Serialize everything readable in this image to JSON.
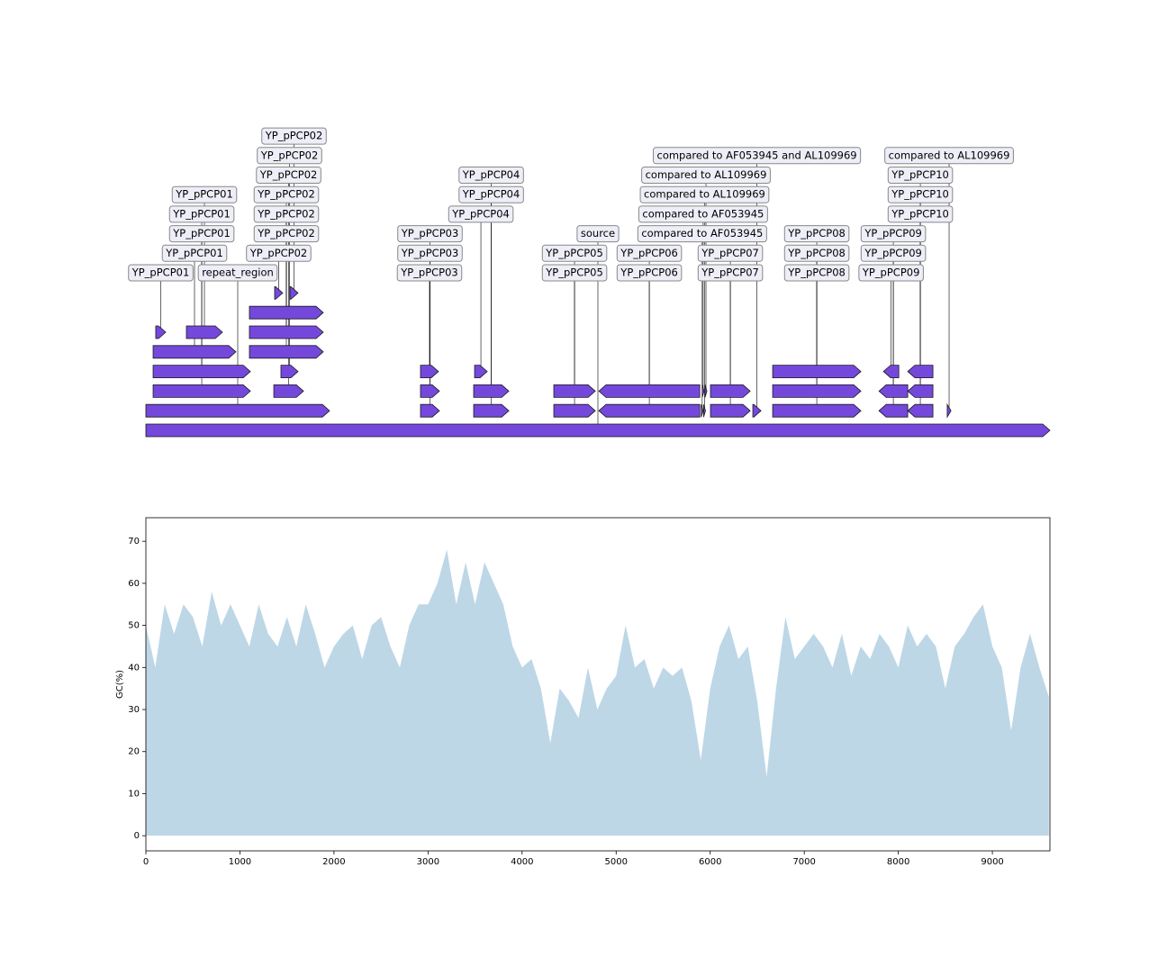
{
  "chart_data": [
    {
      "type": "features",
      "xlim": [
        0,
        9612
      ],
      "color": "#7548dc",
      "features": [
        {
          "start": 0,
          "end": 9612,
          "strand": 1,
          "label": "source"
        },
        {
          "start": 0,
          "end": 1953,
          "strand": 1,
          "label": "repeat_region"
        },
        {
          "start": 77,
          "end": 1111,
          "strand": 1,
          "label": "YP_pPCP01"
        },
        {
          "start": 77,
          "end": 1111,
          "strand": 1,
          "label": "YP_pPCP01"
        },
        {
          "start": 77,
          "end": 957,
          "strand": 1,
          "label": "YP_pPCP01"
        },
        {
          "start": 105,
          "end": 211,
          "strand": 1,
          "label": "YP_pPCP01"
        },
        {
          "start": 431,
          "end": 814,
          "strand": 1,
          "label": "YP_pPCP01"
        },
        {
          "start": 1360,
          "end": 1676,
          "strand": 1,
          "label": "YP_pPCP02"
        },
        {
          "start": 1436,
          "end": 1618,
          "strand": 1,
          "label": "YP_pPCP02"
        },
        {
          "start": 1101,
          "end": 1886,
          "strand": 1,
          "label": "YP_pPCP02"
        },
        {
          "start": 1101,
          "end": 1886,
          "strand": 1,
          "label": "YP_pPCP02"
        },
        {
          "start": 1101,
          "end": 1886,
          "strand": 1,
          "label": "YP_pPCP02"
        },
        {
          "start": 1369,
          "end": 1455,
          "strand": 1,
          "label": "YP_pPCP02"
        },
        {
          "start": 1532,
          "end": 1618,
          "strand": 1,
          "label": "YP_pPCP02"
        },
        {
          "start": 2920,
          "end": 3121,
          "strand": 1,
          "label": "YP_pPCP03"
        },
        {
          "start": 2920,
          "end": 3121,
          "strand": 1,
          "label": "YP_pPCP03"
        },
        {
          "start": 2920,
          "end": 3111,
          "strand": 1,
          "label": "YP_pPCP03"
        },
        {
          "start": 3485,
          "end": 3859,
          "strand": 1,
          "label": "YP_pPCP04"
        },
        {
          "start": 3485,
          "end": 3859,
          "strand": 1,
          "label": "YP_pPCP04"
        },
        {
          "start": 3495,
          "end": 3629,
          "strand": 1,
          "label": "YP_pPCP04"
        },
        {
          "start": 4337,
          "end": 4778,
          "strand": 1,
          "label": "YP_pPCP05"
        },
        {
          "start": 4337,
          "end": 4778,
          "strand": 1,
          "label": "YP_pPCP05"
        },
        {
          "start": 4816,
          "end": 5889,
          "strand": -1,
          "label": "YP_pPCP06"
        },
        {
          "start": 4816,
          "end": 5889,
          "strand": -1,
          "label": "YP_pPCP06"
        },
        {
          "start": 5905,
          "end": 5925,
          "strand": 1,
          "label": "compared to AF053945"
        },
        {
          "start": 5915,
          "end": 5935,
          "strand": 1,
          "label": "compared to AF053945"
        },
        {
          "start": 5930,
          "end": 5950,
          "strand": 1,
          "label": "compared to AL109969"
        },
        {
          "start": 5945,
          "end": 5965,
          "strand": 1,
          "label": "compared to AL109969"
        },
        {
          "start": 6453,
          "end": 6540,
          "strand": 1,
          "label": "compared to AF053945 and AL109969"
        },
        {
          "start": 6003,
          "end": 6425,
          "strand": 1,
          "label": "YP_pPCP07"
        },
        {
          "start": 6003,
          "end": 6425,
          "strand": 1,
          "label": "YP_pPCP07"
        },
        {
          "start": 6664,
          "end": 7602,
          "strand": 1,
          "label": "YP_pPCP08"
        },
        {
          "start": 6664,
          "end": 7602,
          "strand": 1,
          "label": "YP_pPCP08"
        },
        {
          "start": 6664,
          "end": 7602,
          "strand": 1,
          "label": "YP_pPCP08"
        },
        {
          "start": 7794,
          "end": 8100,
          "strand": -1,
          "label": "YP_pPCP09"
        },
        {
          "start": 7794,
          "end": 8100,
          "strand": -1,
          "label": "YP_pPCP09"
        },
        {
          "start": 7842,
          "end": 8005,
          "strand": -1,
          "label": "YP_pPCP09"
        },
        {
          "start": 8100,
          "end": 8368,
          "strand": -1,
          "label": "YP_pPCP10"
        },
        {
          "start": 8100,
          "end": 8368,
          "strand": -1,
          "label": "YP_pPCP10"
        },
        {
          "start": 8100,
          "end": 8368,
          "strand": -1,
          "label": "YP_pPCP10"
        },
        {
          "start": 8520,
          "end": 8560,
          "strand": 1,
          "label": "compared to AL109969"
        }
      ]
    },
    {
      "type": "area",
      "ylabel": "GC(%)",
      "color": "#bdd7e7",
      "xlim": [
        0,
        9612
      ],
      "ylim": [
        -3.6,
        75.6
      ],
      "xticks": [
        0,
        1000,
        2000,
        3000,
        4000,
        5000,
        6000,
        7000,
        8000,
        9000
      ],
      "yticks": [
        0,
        10,
        20,
        30,
        40,
        50,
        60,
        70
      ],
      "x": [
        0,
        100,
        200,
        300,
        400,
        500,
        600,
        700,
        800,
        900,
        1000,
        1100,
        1200,
        1300,
        1400,
        1500,
        1600,
        1700,
        1800,
        1900,
        2000,
        2100,
        2200,
        2300,
        2400,
        2500,
        2600,
        2700,
        2800,
        2900,
        3000,
        3100,
        3200,
        3300,
        3400,
        3500,
        3600,
        3700,
        3800,
        3900,
        4000,
        4100,
        4200,
        4300,
        4400,
        4500,
        4600,
        4700,
        4800,
        4900,
        5000,
        5100,
        5200,
        5300,
        5400,
        5500,
        5600,
        5700,
        5800,
        5900,
        6000,
        6100,
        6200,
        6300,
        6400,
        6500,
        6600,
        6700,
        6800,
        6900,
        7000,
        7100,
        7200,
        7300,
        7400,
        7500,
        7600,
        7700,
        7800,
        7900,
        8000,
        8100,
        8200,
        8300,
        8400,
        8500,
        8600,
        8700,
        8800,
        8900,
        9000,
        9100,
        9200,
        9300,
        9400,
        9500,
        9600
      ],
      "values": [
        50,
        40,
        55,
        48,
        55,
        52,
        45,
        58,
        50,
        55,
        50,
        45,
        55,
        48,
        45,
        52,
        45,
        55,
        48,
        40,
        45,
        48,
        50,
        42,
        50,
        52,
        45,
        40,
        50,
        55,
        55,
        60,
        68,
        55,
        65,
        55,
        65,
        60,
        55,
        45,
        40,
        42,
        35,
        22,
        35,
        32,
        28,
        40,
        30,
        35,
        38,
        50,
        40,
        42,
        35,
        40,
        38,
        40,
        32,
        18,
        35,
        45,
        50,
        42,
        45,
        32,
        14,
        35,
        52,
        42,
        45,
        48,
        45,
        40,
        48,
        38,
        45,
        42,
        48,
        45,
        40,
        50,
        45,
        48,
        45,
        35,
        45,
        48,
        52,
        55,
        45,
        40,
        25,
        40,
        48,
        40,
        33
      ]
    }
  ]
}
